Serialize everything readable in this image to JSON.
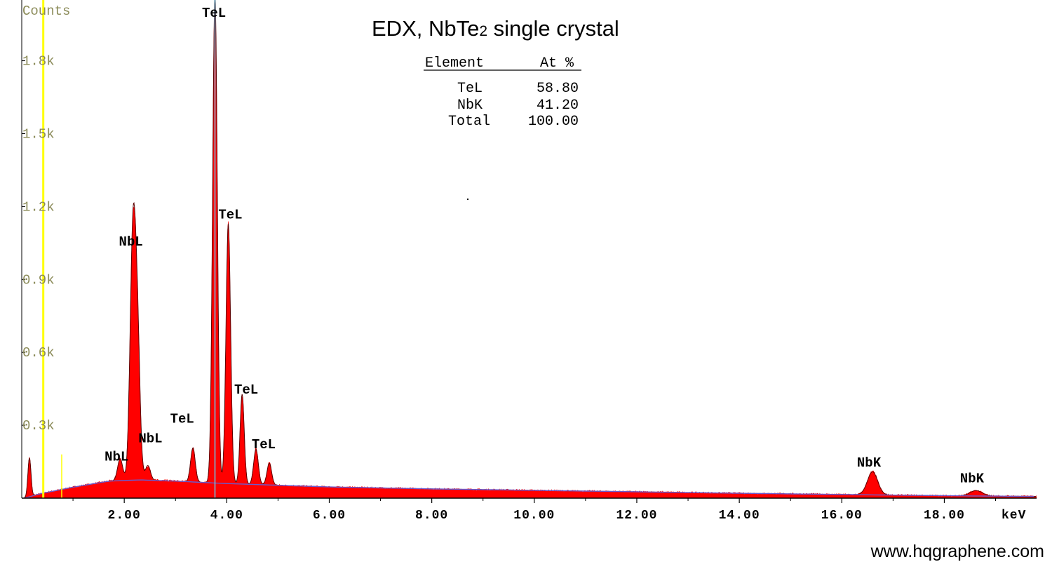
{
  "chart_data": {
    "type": "area",
    "title": "EDX, NbTe",
    "title_subscript": "2",
    "title_suffix": " single crystal",
    "ylabel": "Counts",
    "xunit_label": "keV",
    "xlim": [
      0.0,
      19.8
    ],
    "ylim": [
      0,
      2050
    ],
    "yticks": [
      {
        "value": 300,
        "label": "0.3k"
      },
      {
        "value": 600,
        "label": "0.6k"
      },
      {
        "value": 900,
        "label": "0.9k"
      },
      {
        "value": 1200,
        "label": "1.2k"
      },
      {
        "value": 1500,
        "label": "1.5k"
      },
      {
        "value": 1800,
        "label": "1.8k"
      }
    ],
    "xticks": [
      {
        "value": 2,
        "label": "2.00"
      },
      {
        "value": 4,
        "label": "4.00"
      },
      {
        "value": 6,
        "label": "6.00"
      },
      {
        "value": 8,
        "label": "8.00"
      },
      {
        "value": 10,
        "label": "10.00"
      },
      {
        "value": 12,
        "label": "12.00"
      },
      {
        "value": 14,
        "label": "14.00"
      },
      {
        "value": 16,
        "label": "16.00"
      },
      {
        "value": 18,
        "label": "18.00"
      }
    ],
    "peaks": [
      {
        "element": "NbL",
        "energy": 2.17,
        "counts": 1010,
        "width": 0.055
      },
      {
        "element": "NbL",
        "energy": 2.26,
        "counts": 520,
        "width": 0.05
      },
      {
        "element": "NbL",
        "energy": 1.92,
        "counts": 90,
        "width": 0.05
      },
      {
        "element": "NbL",
        "energy": 2.46,
        "counts": 60,
        "width": 0.05
      },
      {
        "element": "TeL",
        "energy": 3.77,
        "counts": 2020,
        "width": 0.045
      },
      {
        "element": "TeL",
        "energy": 4.03,
        "counts": 1070,
        "width": 0.045
      },
      {
        "element": "TeL",
        "energy": 4.3,
        "counts": 370,
        "width": 0.04
      },
      {
        "element": "TeL",
        "energy": 4.57,
        "counts": 145,
        "width": 0.045
      },
      {
        "element": "TeL",
        "energy": 3.34,
        "counts": 140,
        "width": 0.045
      },
      {
        "element": "TeL",
        "energy": 4.83,
        "counts": 90,
        "width": 0.045
      },
      {
        "element": "NbK",
        "energy": 16.6,
        "counts": 95,
        "width": 0.1
      },
      {
        "element": "NbK",
        "energy": 18.62,
        "counts": 22,
        "width": 0.12
      }
    ],
    "background": [
      {
        "x": 0.05,
        "y": 0
      },
      {
        "x": 0.4,
        "y": 20
      },
      {
        "x": 1.0,
        "y": 45
      },
      {
        "x": 1.7,
        "y": 70
      },
      {
        "x": 2.3,
        "y": 75
      },
      {
        "x": 3.0,
        "y": 70
      },
      {
        "x": 4.0,
        "y": 60
      },
      {
        "x": 6.0,
        "y": 46
      },
      {
        "x": 8.0,
        "y": 38
      },
      {
        "x": 10.0,
        "y": 32
      },
      {
        "x": 12.0,
        "y": 26
      },
      {
        "x": 14.0,
        "y": 20
      },
      {
        "x": 16.0,
        "y": 15
      },
      {
        "x": 18.0,
        "y": 10
      },
      {
        "x": 19.8,
        "y": 7
      }
    ],
    "low_energy_feature": {
      "energy": 0.15,
      "counts": 160
    },
    "marker_lines": [
      {
        "energy": 0.42,
        "color": "#ffff00"
      },
      {
        "energy": 0.78,
        "color": "#ffff00"
      },
      {
        "energy": 3.77,
        "color": "#66ccee"
      }
    ],
    "peak_labels": [
      {
        "text": "TeL",
        "energy": 3.75,
        "counts": 2015
      },
      {
        "text": "TeL",
        "energy": 4.07,
        "counts": 1150
      },
      {
        "text": "NbL",
        "energy": 2.13,
        "counts": 1040
      },
      {
        "text": "TeL",
        "energy": 4.38,
        "counts": 430
      },
      {
        "text": "TeL",
        "energy": 3.13,
        "counts": 310
      },
      {
        "text": "NbL",
        "energy": 2.51,
        "counts": 230
      },
      {
        "text": "TeL",
        "energy": 4.72,
        "counts": 205
      },
      {
        "text": "NbL",
        "energy": 1.85,
        "counts": 155
      },
      {
        "text": "NbK",
        "energy": 16.53,
        "counts": 130
      },
      {
        "text": "NbK",
        "energy": 18.54,
        "counts": 65
      }
    ],
    "composition_table": {
      "headers": [
        "Element",
        "At %"
      ],
      "rows": [
        {
          "element": "TeL",
          "value": "58.80"
        },
        {
          "element": "NbK",
          "value": "41.20"
        },
        {
          "element": "Total",
          "value": "100.00"
        }
      ]
    },
    "colors": {
      "fill": "#ff0000",
      "outline": "#5a0000",
      "background_line": "#6a5acd",
      "axis": "#000000",
      "ytick_text": "#8c8c5a"
    }
  },
  "footer": {
    "website": "www.hqgraphene.com"
  }
}
